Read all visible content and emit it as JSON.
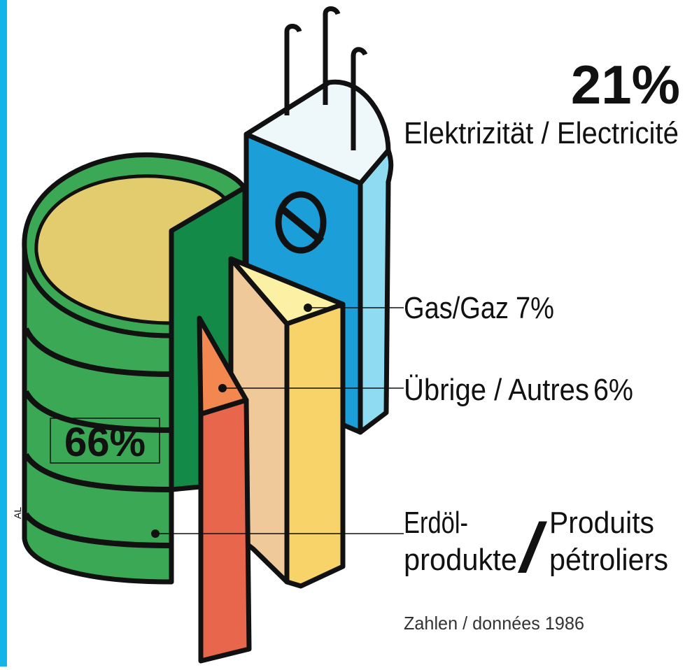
{
  "chart_data": {
    "type": "pie",
    "categories": [
      "Elektrizität / Electricité",
      "Gas/Gaz",
      "Übrige / Autres",
      [
        "Erdöl-",
        "produkte",
        "/",
        "Produits",
        "pétroliers"
      ]
    ],
    "values": [
      21,
      7,
      6,
      66
    ],
    "value_labels": [
      "21%",
      "7%",
      "6%",
      "66%"
    ],
    "colors": [
      "#1c9fd9",
      "#f7e07a",
      "#e8664c",
      "#3aa855"
    ],
    "note": "Zahlen / données 1986",
    "signature": "AL"
  }
}
